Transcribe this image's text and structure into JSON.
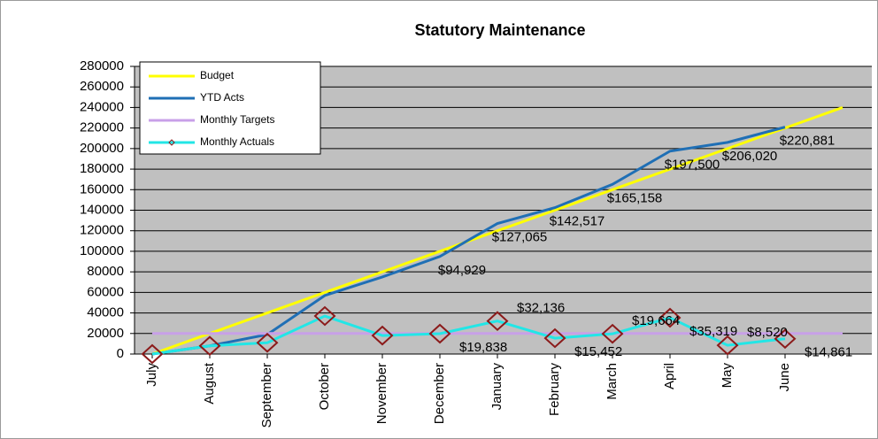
{
  "chart_data": {
    "type": "line",
    "title": "Statutory Maintenance",
    "categories": [
      "July",
      "August",
      "September",
      "October",
      "November",
      "December",
      "January",
      "February",
      "March",
      "April",
      "May",
      "June",
      null
    ],
    "series": [
      {
        "name": "Budget",
        "color": "#ffff00",
        "values": [
          0,
          20000,
          40000,
          60000,
          80000,
          100000,
          120000,
          140000,
          160000,
          180000,
          200000,
          220000,
          240000
        ]
      },
      {
        "name": "YTD Acts",
        "color": "#1f6fb5",
        "values": [
          0,
          8000,
          19000,
          57000,
          75000,
          94929,
          127065,
          142517,
          165158,
          197500,
          206020,
          220881,
          null
        ],
        "value_labels": [
          null,
          null,
          null,
          null,
          null,
          "$94,929",
          "$127,065",
          "$142,517",
          "$165,158",
          "$197,500",
          "$206,020",
          "$220,881",
          null
        ]
      },
      {
        "name": "Monthly Targets",
        "color": "#c8a0e8",
        "values": [
          20000,
          20000,
          20000,
          20000,
          20000,
          20000,
          20000,
          20000,
          20000,
          20000,
          20000,
          20000,
          20000
        ]
      },
      {
        "name": "Monthly Actuals",
        "color": "#22e6e6",
        "marker_color": "#8b1a1a",
        "values": [
          0,
          8000,
          11000,
          37000,
          18000,
          19838,
          32136,
          15452,
          19664,
          35319,
          8520,
          14861,
          null
        ],
        "value_labels": [
          null,
          null,
          null,
          null,
          null,
          "$19,838",
          "$32,136",
          "$15,452",
          "$19,664",
          "$35,319",
          "$8,520",
          "$14,861",
          null
        ]
      }
    ],
    "ylim": [
      0,
      280000
    ],
    "yticks": [
      0,
      20000,
      40000,
      60000,
      80000,
      100000,
      120000,
      140000,
      160000,
      180000,
      200000,
      220000,
      240000,
      260000,
      280000
    ],
    "grid": true,
    "legend": "top-left",
    "plot_color": "#c0c0c0"
  }
}
